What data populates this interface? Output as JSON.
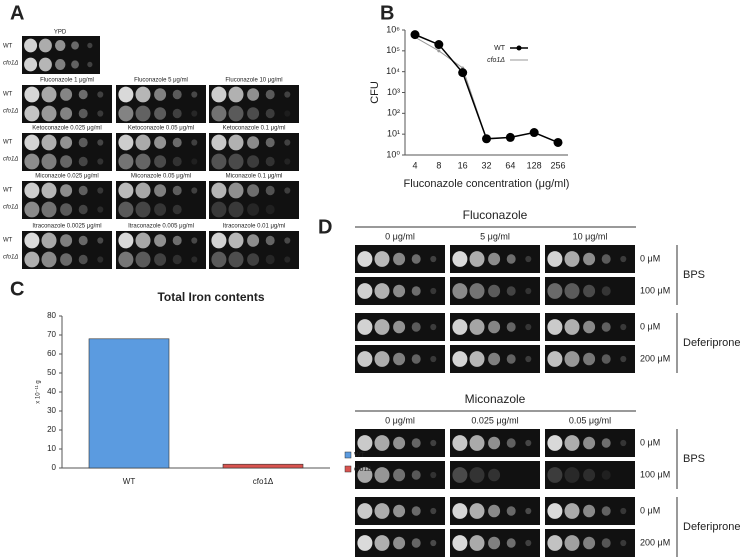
{
  "panel_a": {
    "label": "A",
    "ypd": "YPD",
    "rows": [
      "WT",
      "cfo1Δ"
    ],
    "groups": [
      [
        "Fluconazole 1 μg/ml",
        "Fluconazole 5 μg/ml",
        "Fluconazole 10 μg/ml"
      ],
      [
        "Ketoconazole 0.025 μg/ml",
        "Ketoconazole 0.05 μg/ml",
        "Ketoconazole 0.1 μg/ml"
      ],
      [
        "Miconazole 0.025 μg/ml",
        "Miconazole 0.05 μg/ml",
        "Miconazole 0.1 μg/ml"
      ],
      [
        "Itraconazole 0.0025 μg/ml",
        "Itraconazole 0.005 μg/ml",
        "Itraconazole 0.01 μg/ml"
      ]
    ]
  },
  "panel_d": {
    "label": "D",
    "blocks": [
      {
        "title": "Fluconazole",
        "columns": [
          "0 μg/ml",
          "5 μg/ml",
          "10 μg/ml"
        ],
        "sets": [
          {
            "name": "BPS",
            "rows": [
              "0 μM",
              "100 μM"
            ]
          },
          {
            "name": "Deferiprone",
            "rows": [
              "0 μM",
              "200 μM"
            ]
          }
        ]
      },
      {
        "title": "Miconazole",
        "columns": [
          "0 μg/ml",
          "0.025 μg/ml",
          "0.05 μg/ml"
        ],
        "sets": [
          {
            "name": "BPS",
            "rows": [
              "0 μM",
              "100 μM"
            ]
          },
          {
            "name": "Deferiprone",
            "rows": [
              "0 μM",
              "200 μM"
            ]
          }
        ]
      }
    ]
  },
  "chart_data": [
    {
      "type": "line",
      "panel": "B",
      "xlabel": "Fluconazole concentration (μg/ml)",
      "ylabel": "CFU",
      "categories": [
        "4",
        "8",
        "16",
        "32",
        "64",
        "128",
        "256"
      ],
      "log_scale": true,
      "ylim": [
        1,
        1000000
      ],
      "yticks": [
        {
          "value": 1,
          "label": "10⁰"
        },
        {
          "value": 10,
          "label": "10¹"
        },
        {
          "value": 100,
          "label": "10²"
        },
        {
          "value": 1000,
          "label": "10³"
        },
        {
          "value": 10000,
          "label": "10⁴"
        },
        {
          "value": 100000,
          "label": "10⁵"
        },
        {
          "value": 1000000,
          "label": "10⁶"
        }
      ],
      "series": [
        {
          "name": "WT",
          "color": "#000000",
          "values": [
            600000,
            200000,
            9000,
            6,
            7,
            12,
            4
          ]
        },
        {
          "name": "cfo1Δ",
          "color": "#999999",
          "values": [
            450000,
            100000,
            15000,
            6,
            7,
            12,
            4
          ]
        }
      ]
    },
    {
      "type": "bar",
      "panel": "C",
      "title": "Total Iron contents",
      "ylabel": "x 10⁻¹¹ g",
      "categories": [
        "WT",
        "cfo1Δ"
      ],
      "ylim": [
        0,
        80
      ],
      "yticks": [
        0,
        10,
        20,
        30,
        40,
        50,
        60,
        70,
        80
      ],
      "series": [
        {
          "name": "WT",
          "color": "#5b9be0",
          "values": [
            68,
            null
          ]
        },
        {
          "name": "cfo1Δ",
          "color": "#d9534f",
          "values": [
            null,
            2
          ]
        }
      ]
    }
  ]
}
